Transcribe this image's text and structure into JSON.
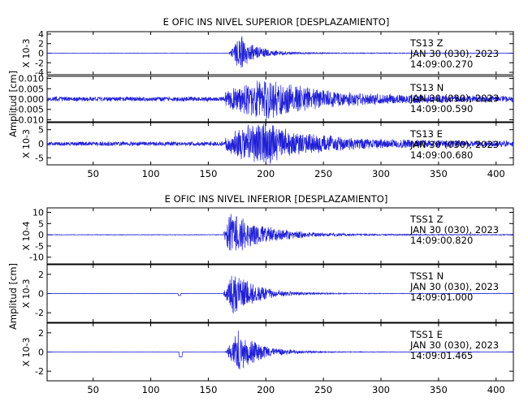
{
  "chart_data": [
    {
      "type": "line",
      "title": "E OFIC INS NIVEL SUPERIOR [DESPLAZAMIENTO]",
      "ylabel": "Amplitud [cm]",
      "xlim": [
        10,
        415
      ],
      "xticks": [
        50,
        100,
        150,
        200,
        250,
        300,
        350,
        400
      ],
      "series_color": "#1f1fd6",
      "panels": [
        {
          "station": "TS13",
          "component": "Z",
          "date": "JAN 30 (030), 2023",
          "time": "14:09:00.270",
          "scale_label": "X 10-3",
          "ylim": [
            -4.5,
            4.5
          ],
          "yticks": [
            -4,
            -2,
            0,
            2,
            4
          ],
          "signal": {
            "onset": 168,
            "peak": 178,
            "peak_amp": 3.9,
            "decay": 14,
            "background": 0.05,
            "tail_amp": 0.15,
            "seed": 1
          }
        },
        {
          "station": "TS13",
          "component": "N",
          "date": "JAN 30 (030), 2023",
          "time": "14:09:00.590",
          "scale_label": "",
          "ylim": [
            -0.011,
            0.011
          ],
          "yticks": [
            -0.01,
            -0.005,
            0.0,
            0.005,
            0.01
          ],
          "tick_format": 3,
          "signal": {
            "onset": 165,
            "peak": 200,
            "peak_amp": 0.0075,
            "decay": 40,
            "background": 0.0012,
            "tail_amp": 0.003,
            "seed": 2
          }
        },
        {
          "station": "TS13",
          "component": "E",
          "date": "JAN 30 (030), 2023",
          "time": "14:09:00.680",
          "scale_label": "X 10-3",
          "ylim": [
            -7.5,
            7.5
          ],
          "yticks": [
            -5,
            0,
            5
          ],
          "signal": {
            "onset": 165,
            "peak": 195,
            "peak_amp": 6.5,
            "decay": 35,
            "background": 0.8,
            "tail_amp": 2.2,
            "seed": 3
          }
        }
      ]
    },
    {
      "type": "line",
      "title": "E OFIC INS NIVEL INFERIOR [DESPLAZAMIENTO]",
      "ylabel": "Amplitud [cm]",
      "xlim": [
        10,
        415
      ],
      "xticks": [
        50,
        100,
        150,
        200,
        250,
        300,
        350,
        400
      ],
      "series_color": "#1f1fd6",
      "panels": [
        {
          "station": "TSS1",
          "component": "Z",
          "date": "JAN 30 (030), 2023",
          "time": "14:09:00.820",
          "scale_label": "X 10-4",
          "ylim": [
            -13,
            12
          ],
          "yticks": [
            -10,
            -5,
            0,
            5,
            10
          ],
          "signal": {
            "onset": 163,
            "peak": 168,
            "peak_amp": 11,
            "decay": 28,
            "background": 0.15,
            "tail_amp": 0.4,
            "seed": 4
          }
        },
        {
          "station": "TSS1",
          "component": "N",
          "date": "JAN 30 (030), 2023",
          "time": "14:09:01.000",
          "scale_label": "X 10-3",
          "ylim": [
            -3,
            3
          ],
          "yticks": [
            -2,
            0,
            2
          ],
          "signal": {
            "onset": 163,
            "peak": 172,
            "peak_amp": 2.4,
            "decay": 20,
            "background": 0.02,
            "tail_amp": 0.05,
            "seed": 5,
            "glitch_x": 125,
            "glitch_amp": -0.2
          }
        },
        {
          "station": "TSS1",
          "component": "E",
          "date": "JAN 30 (030), 2023",
          "time": "14:09:01.465",
          "scale_label": "X 10-3",
          "ylim": [
            -3,
            3
          ],
          "yticks": [
            -2,
            0,
            2
          ],
          "signal": {
            "onset": 165,
            "peak": 176,
            "peak_amp": 2.3,
            "decay": 18,
            "background": 0.02,
            "tail_amp": 0.05,
            "seed": 6,
            "glitch_x": 126,
            "glitch_amp": -0.5
          }
        }
      ]
    }
  ]
}
